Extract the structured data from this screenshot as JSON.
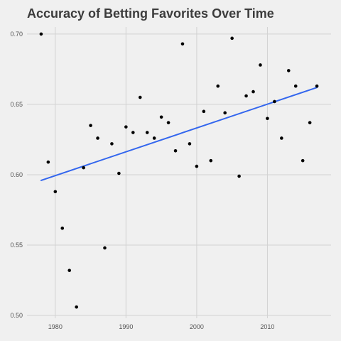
{
  "chart_data": {
    "type": "scatter",
    "title": "Accuracy of Betting Favorites Over Time",
    "xlabel": "",
    "ylabel": "",
    "xlim": [
      1976,
      2019
    ],
    "ylim": [
      0.498,
      0.705
    ],
    "x_ticks": [
      1980,
      1990,
      2000,
      2010
    ],
    "y_ticks": [
      0.5,
      0.55,
      0.6,
      0.65,
      0.7
    ],
    "x_tick_labels": [
      "1980",
      "1990",
      "2000",
      "2010"
    ],
    "y_tick_labels": [
      "0.50",
      "0.55",
      "0.60",
      "0.65",
      "0.70"
    ],
    "grid": true,
    "legend": "none",
    "points": [
      {
        "x": 1978,
        "y": 0.7
      },
      {
        "x": 1979,
        "y": 0.609
      },
      {
        "x": 1980,
        "y": 0.588
      },
      {
        "x": 1981,
        "y": 0.562
      },
      {
        "x": 1982,
        "y": 0.532
      },
      {
        "x": 1983,
        "y": 0.506
      },
      {
        "x": 1984,
        "y": 0.605
      },
      {
        "x": 1985,
        "y": 0.635
      },
      {
        "x": 1986,
        "y": 0.626
      },
      {
        "x": 1987,
        "y": 0.548
      },
      {
        "x": 1988,
        "y": 0.622
      },
      {
        "x": 1989,
        "y": 0.601
      },
      {
        "x": 1990,
        "y": 0.634
      },
      {
        "x": 1991,
        "y": 0.63
      },
      {
        "x": 1992,
        "y": 0.655
      },
      {
        "x": 1993,
        "y": 0.63
      },
      {
        "x": 1994,
        "y": 0.626
      },
      {
        "x": 1995,
        "y": 0.641
      },
      {
        "x": 1996,
        "y": 0.637
      },
      {
        "x": 1997,
        "y": 0.617
      },
      {
        "x": 1998,
        "y": 0.693
      },
      {
        "x": 1999,
        "y": 0.622
      },
      {
        "x": 2000,
        "y": 0.606
      },
      {
        "x": 2001,
        "y": 0.645
      },
      {
        "x": 2002,
        "y": 0.61
      },
      {
        "x": 2003,
        "y": 0.663
      },
      {
        "x": 2004,
        "y": 0.644
      },
      {
        "x": 2005,
        "y": 0.697
      },
      {
        "x": 2006,
        "y": 0.599
      },
      {
        "x": 2007,
        "y": 0.656
      },
      {
        "x": 2008,
        "y": 0.659
      },
      {
        "x": 2009,
        "y": 0.678
      },
      {
        "x": 2010,
        "y": 0.64
      },
      {
        "x": 2011,
        "y": 0.652
      },
      {
        "x": 2012,
        "y": 0.626
      },
      {
        "x": 2013,
        "y": 0.674
      },
      {
        "x": 2014,
        "y": 0.663
      },
      {
        "x": 2015,
        "y": 0.61
      },
      {
        "x": 2016,
        "y": 0.637
      },
      {
        "x": 2017,
        "y": 0.663
      }
    ],
    "trend_line": {
      "x": [
        1978,
        2017
      ],
      "y": [
        0.596,
        0.662
      ]
    },
    "colors": {
      "background": "#f0f0f0",
      "grid": "#d2d2d2",
      "points": "#000000",
      "trend_line": "#3366ee"
    }
  }
}
